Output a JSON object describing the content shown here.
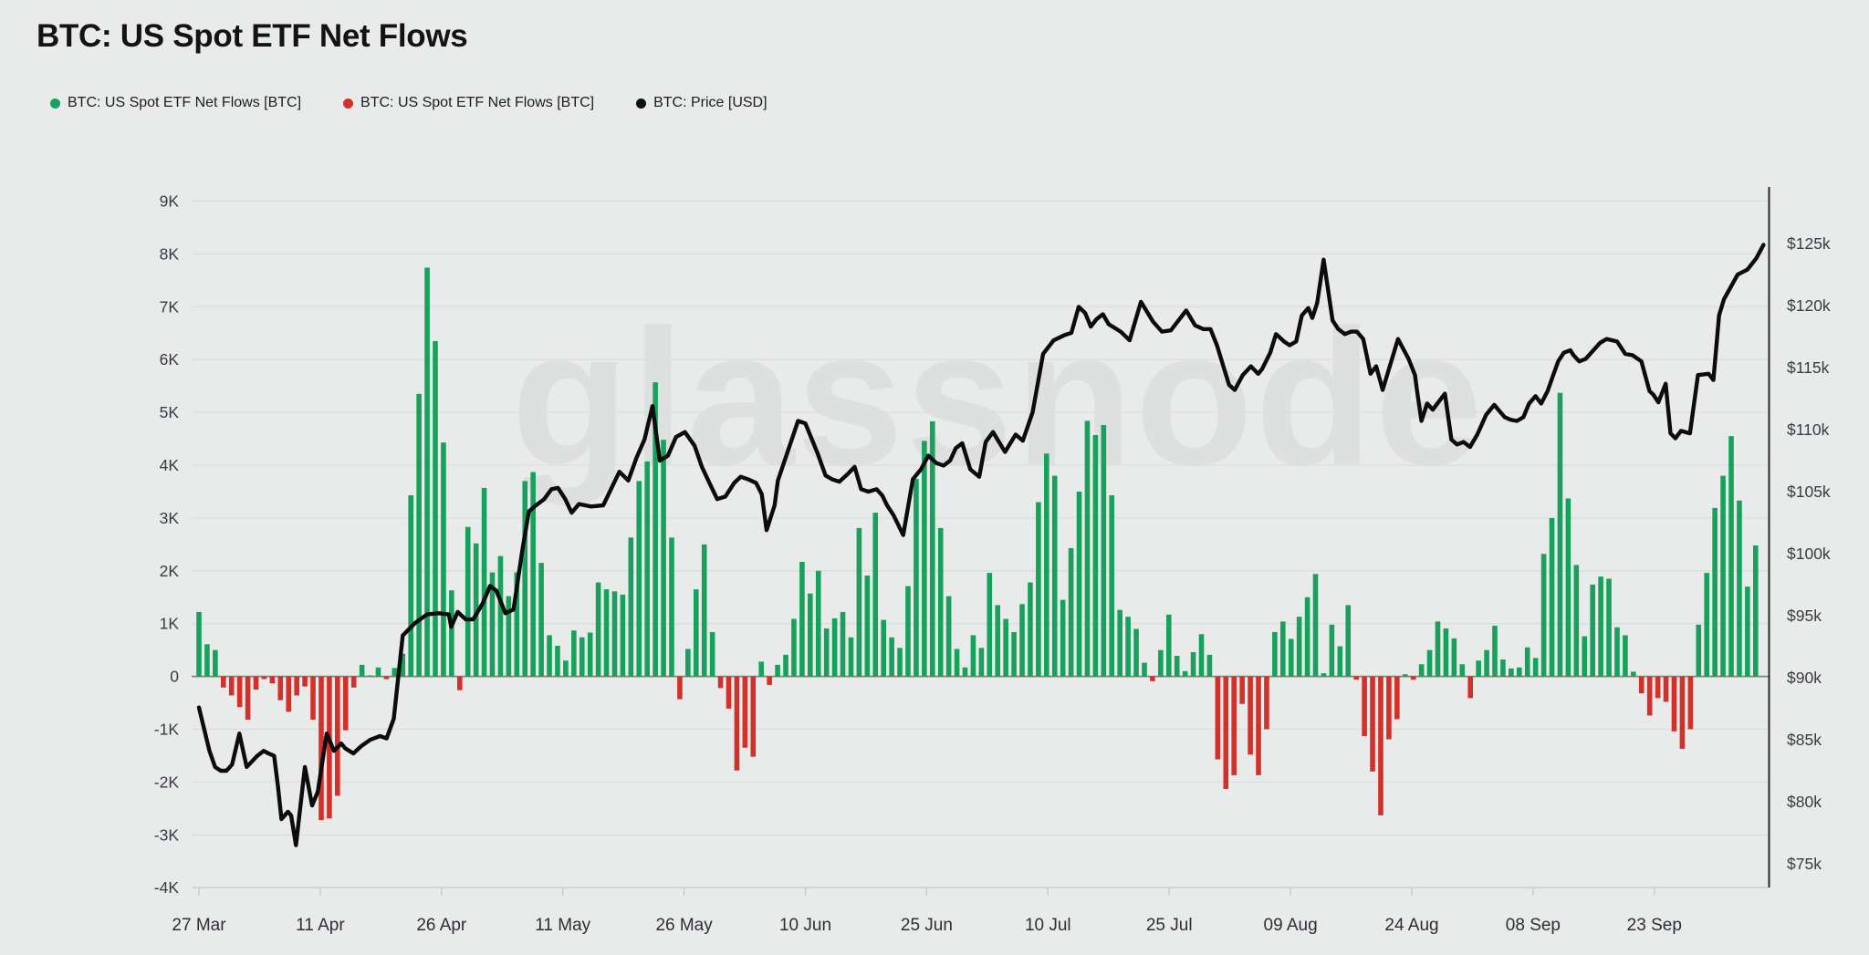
{
  "header": {
    "title": "BTC: US Spot ETF Net Flows"
  },
  "legend": {
    "items": [
      {
        "label": "BTC: US Spot ETF Net Flows [BTC]",
        "color": "#18a15c"
      },
      {
        "label": "BTC: US Spot ETF Net Flows [BTC]",
        "color": "#d2312a"
      },
      {
        "label": "BTC: Price [USD]",
        "color": "#0f0f0f"
      }
    ]
  },
  "watermark": "glassnode",
  "chart_data": {
    "type": "bar",
    "subtype": "bar+line combo, dual y-axis",
    "title": "BTC: US Spot ETF Net Flows",
    "x_axis": {
      "tick_labels": [
        "27 Mar",
        "11 Apr",
        "26 Apr",
        "11 May",
        "26 May",
        "10 Jun",
        "25 Jun",
        "10 Jul",
        "25 Jul",
        "09 Aug",
        "24 Aug",
        "08 Sep",
        "23 Sep"
      ],
      "tick_days": [
        0,
        15,
        30,
        45,
        60,
        75,
        90,
        105,
        120,
        135,
        150,
        165,
        180
      ],
      "domain_days": [
        -1.6,
        196.5
      ]
    },
    "y_left": {
      "title_unit": "BTC net flow (thousands)",
      "tick_labels": [
        "9K",
        "8K",
        "7K",
        "6K",
        "5K",
        "4K",
        "3K",
        "2K",
        "1K",
        "0",
        "-1K",
        "-2K",
        "-3K",
        "-4K"
      ],
      "tick_values": [
        9,
        8,
        7,
        6,
        5,
        4,
        3,
        2,
        1,
        0,
        -1,
        -2,
        -3,
        -4
      ],
      "range": [
        -4,
        9
      ]
    },
    "y_right": {
      "title_unit": "BTC price (USD thousands)",
      "tick_labels": [
        "$125k",
        "$120k",
        "$115k",
        "$110k",
        "$105k",
        "$100k",
        "$95k",
        "$90k",
        "$85k",
        "$80k",
        "$75k"
      ],
      "tick_values": [
        125,
        120,
        115,
        110,
        105,
        100,
        95,
        90,
        85,
        80,
        75
      ],
      "range": [
        75,
        125
      ],
      "alignment_note": "$90k aligns with 0 on left axis"
    },
    "series": [
      {
        "name": "BTC: US Spot ETF Net Flows [BTC]",
        "type": "bar",
        "units": "K BTC per day",
        "positive_color": "#18a15c",
        "negative_color": "#d2312a",
        "first_bar_label": "27 Mar",
        "values": [
          1.22,
          0.61,
          0.5,
          -0.21,
          -0.36,
          -0.58,
          -0.82,
          -0.25,
          -0.05,
          -0.13,
          -0.45,
          -0.67,
          -0.36,
          -0.19,
          -0.82,
          -2.72,
          -2.69,
          -2.26,
          -1.02,
          -0.21,
          0.22,
          0.02,
          0.17,
          -0.05,
          0.16,
          0.43,
          3.43,
          5.35,
          7.74,
          6.35,
          4.43,
          1.63,
          -0.26,
          2.83,
          2.52,
          3.57,
          1.97,
          2.28,
          1.52,
          1.97,
          3.7,
          3.87,
          2.15,
          0.78,
          0.58,
          0.3,
          0.87,
          0.74,
          0.83,
          1.78,
          1.65,
          1.61,
          1.55,
          2.63,
          3.7,
          4.07,
          5.57,
          4.48,
          2.63,
          -0.43,
          0.52,
          1.65,
          2.5,
          0.84,
          -0.22,
          -0.61,
          -1.78,
          -1.35,
          -1.52,
          0.28,
          -0.16,
          0.22,
          0.41,
          1.09,
          2.17,
          1.57,
          2.0,
          0.91,
          1.1,
          1.22,
          0.74,
          2.81,
          1.91,
          3.1,
          1.07,
          0.74,
          0.54,
          1.71,
          3.74,
          4.46,
          4.83,
          2.81,
          1.52,
          0.52,
          0.17,
          0.78,
          0.54,
          1.96,
          1.35,
          1.09,
          0.84,
          1.37,
          1.78,
          3.3,
          4.22,
          3.8,
          1.45,
          2.43,
          3.5,
          4.84,
          4.57,
          4.76,
          3.43,
          1.26,
          1.13,
          0.9,
          0.26,
          -0.09,
          0.5,
          1.17,
          0.39,
          0.1,
          0.46,
          0.8,
          0.41,
          -1.57,
          -2.13,
          -1.87,
          -0.52,
          -1.48,
          -1.87,
          -1.0,
          0.84,
          1.04,
          0.71,
          1.13,
          1.5,
          1.94,
          0.06,
          0.98,
          0.57,
          1.35,
          -0.06,
          -1.13,
          -1.8,
          -2.63,
          -1.19,
          -0.81,
          0.04,
          -0.06,
          0.23,
          0.5,
          1.04,
          0.91,
          0.72,
          0.23,
          -0.41,
          0.3,
          0.5,
          0.96,
          0.32,
          0.15,
          0.17,
          0.55,
          0.35,
          2.32,
          3.0,
          5.37,
          3.37,
          2.11,
          0.76,
          1.74,
          1.89,
          1.85,
          0.93,
          0.78,
          0.09,
          -0.32,
          -0.74,
          -0.41,
          -0.48,
          -1.04,
          -1.37,
          -1.0,
          0.98,
          1.96,
          3.19,
          3.8,
          4.55,
          3.33,
          1.7,
          2.48
        ]
      },
      {
        "name": "BTC: Price [USD]",
        "type": "line",
        "units": "USD thousands",
        "color": "#0c0c0c",
        "points": [
          [
            0,
            87.6
          ],
          [
            1.3,
            84.1
          ],
          [
            2,
            82.8
          ],
          [
            2.7,
            82.5
          ],
          [
            3.4,
            82.5
          ],
          [
            4.1,
            83.0
          ],
          [
            5,
            85.5
          ],
          [
            5.9,
            82.8
          ],
          [
            7.2,
            83.7
          ],
          [
            8,
            84.1
          ],
          [
            8.6,
            83.9
          ],
          [
            9.3,
            83.7
          ],
          [
            9.8,
            81.1
          ],
          [
            10.2,
            78.6
          ],
          [
            11,
            79.2
          ],
          [
            11.4,
            78.9
          ],
          [
            12,
            76.5
          ],
          [
            13.1,
            82.8
          ],
          [
            14,
            79.7
          ],
          [
            14.7,
            80.8
          ],
          [
            15.8,
            85.5
          ],
          [
            16.7,
            84.1
          ],
          [
            17.6,
            84.7
          ],
          [
            18.1,
            84.3
          ],
          [
            19.1,
            83.9
          ],
          [
            20.1,
            84.5
          ],
          [
            21.2,
            85.0
          ],
          [
            22.4,
            85.3
          ],
          [
            23.2,
            85.1
          ],
          [
            24.1,
            86.7
          ],
          [
            25.2,
            93.4
          ],
          [
            26.7,
            94.4
          ],
          [
            28.2,
            95.1
          ],
          [
            29.6,
            95.2
          ],
          [
            30.9,
            95.1
          ],
          [
            31.2,
            94.1
          ],
          [
            32,
            95.3
          ],
          [
            33,
            94.7
          ],
          [
            33.9,
            94.7
          ],
          [
            35.1,
            96.0
          ],
          [
            36,
            97.4
          ],
          [
            36.8,
            97.0
          ],
          [
            37.9,
            95.2
          ],
          [
            38.9,
            95.5
          ],
          [
            40,
            100.3
          ],
          [
            40.8,
            103.4
          ],
          [
            41.5,
            103.8
          ],
          [
            42.7,
            104.4
          ],
          [
            43.6,
            105.2
          ],
          [
            44.4,
            105.3
          ],
          [
            45.3,
            104.4
          ],
          [
            46.1,
            103.3
          ],
          [
            47,
            104.0
          ],
          [
            48.5,
            103.8
          ],
          [
            50,
            103.9
          ],
          [
            52,
            106.6
          ],
          [
            53.1,
            105.9
          ],
          [
            54.1,
            107.7
          ],
          [
            55.1,
            109.2
          ],
          [
            56.1,
            111.9
          ],
          [
            57,
            107.5
          ],
          [
            58,
            107.9
          ],
          [
            59,
            109.4
          ],
          [
            60.1,
            109.8
          ],
          [
            61.3,
            108.7
          ],
          [
            62.2,
            107.0
          ],
          [
            63.2,
            105.6
          ],
          [
            64.1,
            104.4
          ],
          [
            65.1,
            104.6
          ],
          [
            66.2,
            105.7
          ],
          [
            67,
            106.2
          ],
          [
            67.9,
            106.0
          ],
          [
            68.9,
            105.7
          ],
          [
            69.6,
            104.8
          ],
          [
            70.2,
            101.9
          ],
          [
            71.2,
            103.9
          ],
          [
            71.6,
            105.9
          ],
          [
            74.1,
            110.7
          ],
          [
            75,
            110.5
          ],
          [
            76.5,
            108.1
          ],
          [
            77.5,
            106.3
          ],
          [
            78.3,
            106.0
          ],
          [
            79.2,
            105.8
          ],
          [
            80.2,
            106.4
          ],
          [
            81.1,
            107.0
          ],
          [
            81.9,
            105.2
          ],
          [
            82.8,
            105.0
          ],
          [
            83.8,
            105.2
          ],
          [
            84.5,
            104.7
          ],
          [
            85.1,
            103.9
          ],
          [
            85.9,
            103.1
          ],
          [
            87.1,
            101.5
          ],
          [
            88.3,
            106.0
          ],
          [
            89.3,
            106.8
          ],
          [
            90.2,
            107.9
          ],
          [
            91.2,
            107.3
          ],
          [
            92.1,
            107.1
          ],
          [
            92.9,
            107.5
          ],
          [
            93.6,
            108.5
          ],
          [
            94.4,
            108.9
          ],
          [
            95.4,
            106.8
          ],
          [
            96.5,
            106.2
          ],
          [
            97.3,
            109.0
          ],
          [
            98.2,
            109.8
          ],
          [
            99.7,
            108.2
          ],
          [
            101,
            109.6
          ],
          [
            101.9,
            109.1
          ],
          [
            103.1,
            111.4
          ],
          [
            103.9,
            114.3
          ],
          [
            104.4,
            116.1
          ],
          [
            105.7,
            117.2
          ],
          [
            107,
            117.6
          ],
          [
            107.9,
            117.8
          ],
          [
            108.8,
            119.9
          ],
          [
            109.6,
            119.4
          ],
          [
            110.3,
            118.3
          ],
          [
            111,
            118.9
          ],
          [
            111.8,
            119.3
          ],
          [
            112.5,
            118.5
          ],
          [
            114,
            117.9
          ],
          [
            115.1,
            117.2
          ],
          [
            116.5,
            120.3
          ],
          [
            118,
            118.7
          ],
          [
            119.1,
            117.9
          ],
          [
            120.2,
            118.0
          ],
          [
            122.1,
            119.6
          ],
          [
            123.2,
            118.4
          ],
          [
            124.2,
            118.1
          ],
          [
            125.1,
            118.1
          ],
          [
            125.9,
            116.8
          ],
          [
            126.6,
            115.3
          ],
          [
            127.4,
            113.6
          ],
          [
            128.1,
            113.2
          ],
          [
            129.1,
            114.4
          ],
          [
            130.1,
            115.1
          ],
          [
            131,
            114.5
          ],
          [
            131.5,
            114.9
          ],
          [
            132.5,
            116.2
          ],
          [
            133.2,
            117.7
          ],
          [
            134.2,
            117.1
          ],
          [
            134.9,
            116.8
          ],
          [
            135.7,
            117.1
          ],
          [
            136.4,
            119.2
          ],
          [
            137.2,
            119.8
          ],
          [
            137.7,
            119.0
          ],
          [
            138.3,
            120.2
          ],
          [
            139.1,
            123.7
          ],
          [
            140.2,
            118.8
          ],
          [
            140.9,
            118.1
          ],
          [
            141.7,
            117.7
          ],
          [
            142.5,
            117.9
          ],
          [
            143.2,
            117.9
          ],
          [
            144,
            117.3
          ],
          [
            144.9,
            114.5
          ],
          [
            145.6,
            115.1
          ],
          [
            146.4,
            113.2
          ],
          [
            147,
            114.5
          ],
          [
            148.3,
            117.3
          ],
          [
            149.6,
            115.7
          ],
          [
            150.4,
            114.4
          ],
          [
            150.7,
            112.9
          ],
          [
            151.2,
            110.7
          ],
          [
            151.9,
            112.1
          ],
          [
            152.6,
            111.6
          ],
          [
            153.4,
            112.3
          ],
          [
            154.1,
            112.9
          ],
          [
            154.9,
            109.2
          ],
          [
            155.6,
            108.8
          ],
          [
            156.4,
            109.0
          ],
          [
            157.2,
            108.6
          ],
          [
            158.1,
            109.6
          ],
          [
            159.2,
            111.2
          ],
          [
            160.2,
            112.0
          ],
          [
            160.7,
            111.6
          ],
          [
            161.5,
            111.0
          ],
          [
            162.2,
            110.8
          ],
          [
            163,
            110.7
          ],
          [
            163.8,
            111.0
          ],
          [
            164.5,
            112.1
          ],
          [
            165.3,
            112.7
          ],
          [
            166,
            112.1
          ],
          [
            166.8,
            113.1
          ],
          [
            167.5,
            114.4
          ],
          [
            168.1,
            115.5
          ],
          [
            168.8,
            116.2
          ],
          [
            169.6,
            116.4
          ],
          [
            170,
            116.0
          ],
          [
            170.7,
            115.5
          ],
          [
            171.5,
            115.7
          ],
          [
            173.3,
            117.0
          ],
          [
            174.1,
            117.3
          ],
          [
            175.4,
            117.1
          ],
          [
            176.4,
            116.1
          ],
          [
            177.3,
            116.0
          ],
          [
            178.4,
            115.5
          ],
          [
            179.4,
            113.1
          ],
          [
            179.9,
            112.8
          ],
          [
            180.5,
            112.2
          ],
          [
            181.4,
            113.7
          ],
          [
            182,
            109.7
          ],
          [
            182.6,
            109.3
          ],
          [
            183.3,
            109.9
          ],
          [
            184.4,
            109.7
          ],
          [
            185.4,
            114.4
          ],
          [
            186.7,
            114.5
          ],
          [
            187.3,
            114.0
          ],
          [
            188,
            119.2
          ],
          [
            188.6,
            120.5
          ],
          [
            190.3,
            122.5
          ],
          [
            190.9,
            122.7
          ],
          [
            191.5,
            122.9
          ],
          [
            192.6,
            123.8
          ],
          [
            193.5,
            124.9
          ]
        ]
      }
    ],
    "style": {
      "background": "#e9eaea",
      "gridline_color": "#dddddd",
      "zero_line_color": "#85817a",
      "right_axis_line_color": "#26262b",
      "axis_text_color": "#3a3a42",
      "grid": "horizontal only",
      "legend_position": "top-left"
    }
  }
}
